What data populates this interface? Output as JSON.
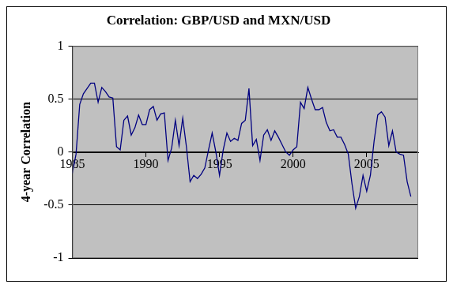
{
  "chart_data": {
    "type": "line",
    "title": "Correlation: GBP/USD and MXN/USD",
    "ylabel": "4-year Correlation",
    "x": [
      1985,
      1985.25,
      1985.5,
      1985.75,
      1986,
      1986.25,
      1986.5,
      1986.75,
      1987,
      1987.25,
      1987.5,
      1987.75,
      1988,
      1988.25,
      1988.5,
      1988.75,
      1989,
      1989.25,
      1989.5,
      1989.75,
      1990,
      1990.25,
      1990.5,
      1990.75,
      1991,
      1991.25,
      1991.5,
      1991.75,
      1992,
      1992.25,
      1992.5,
      1992.75,
      1993,
      1993.25,
      1993.5,
      1993.75,
      1994,
      1994.25,
      1994.5,
      1994.75,
      1995,
      1995.25,
      1995.5,
      1995.75,
      1996,
      1996.25,
      1996.5,
      1996.75,
      1997,
      1997.25,
      1997.5,
      1997.75,
      1998,
      1998.25,
      1998.5,
      1998.75,
      1999,
      1999.25,
      1999.5,
      1999.75,
      2000,
      2000.25,
      2000.5,
      2000.75,
      2001,
      2001.25,
      2001.5,
      2001.75,
      2002,
      2002.25,
      2002.5,
      2002.75,
      2003,
      2003.25,
      2003.5,
      2003.75,
      2004,
      2004.25,
      2004.5,
      2004.75,
      2005,
      2005.25,
      2005.5,
      2005.75,
      2006,
      2006.25,
      2006.5,
      2006.75,
      2007,
      2007.25,
      2007.5,
      2007.75,
      2008
    ],
    "values": [
      -0.2,
      -0.02,
      0.45,
      0.55,
      0.6,
      0.65,
      0.65,
      0.47,
      0.61,
      0.57,
      0.52,
      0.51,
      0.05,
      0.02,
      0.3,
      0.34,
      0.16,
      0.23,
      0.35,
      0.26,
      0.26,
      0.4,
      0.43,
      0.3,
      0.36,
      0.37,
      -0.08,
      0.04,
      0.3,
      0.06,
      0.32,
      0.05,
      -0.28,
      -0.22,
      -0.25,
      -0.21,
      -0.15,
      0.02,
      0.18,
      0.0,
      -0.22,
      0.02,
      0.18,
      0.1,
      0.13,
      0.11,
      0.27,
      0.3,
      0.6,
      0.06,
      0.12,
      -0.08,
      0.16,
      0.21,
      0.11,
      0.2,
      0.14,
      0.07,
      0.0,
      -0.03,
      0.02,
      0.05,
      0.47,
      0.41,
      0.61,
      0.5,
      0.4,
      0.4,
      0.42,
      0.28,
      0.2,
      0.21,
      0.14,
      0.14,
      0.07,
      -0.02,
      -0.3,
      -0.53,
      -0.42,
      -0.22,
      -0.37,
      -0.22,
      0.1,
      0.35,
      0.38,
      0.33,
      0.06,
      0.2,
      0.0,
      -0.02,
      -0.03,
      -0.28,
      -0.42
    ],
    "color": "#000080",
    "xlim": [
      1985,
      2008.5
    ],
    "xticks": [
      1985,
      1990,
      1995,
      2000,
      2005
    ],
    "ylim": [
      -1,
      1
    ],
    "yticks": [
      -1,
      -0.5,
      0,
      0.5,
      1
    ],
    "grid": true
  }
}
